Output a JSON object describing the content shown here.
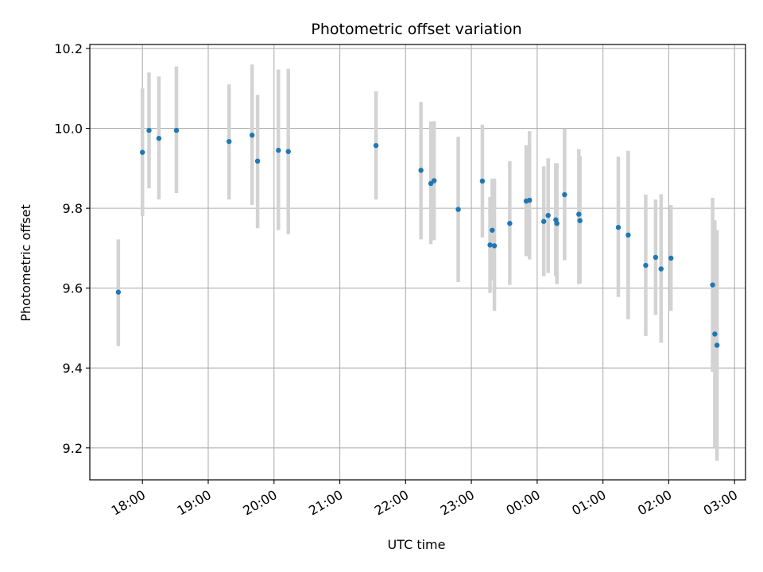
{
  "chart_data": {
    "type": "scatter",
    "title": "Photometric offset variation",
    "xlabel": "UTC time",
    "ylabel": "Photometric offset",
    "x_axis_kind": "time",
    "xlim": [
      "17:12",
      "03:10"
    ],
    "ylim": [
      9.12,
      10.21
    ],
    "x_ticks": [
      "18:00",
      "19:00",
      "20:00",
      "21:00",
      "22:00",
      "23:00",
      "00:00",
      "01:00",
      "02:00",
      "03:00"
    ],
    "y_ticks": [
      9.2,
      9.4,
      9.6,
      9.8,
      10.0,
      10.2
    ],
    "y_tick_labels": [
      "9.2",
      "9.4",
      "9.6",
      "9.8",
      "10.0",
      "10.2"
    ],
    "grid": true,
    "colors": {
      "point": "#1f77b4",
      "errorbar": "#d3d3d3",
      "grid": "#b0b0b0",
      "axes": "#000000"
    },
    "points": [
      {
        "x": "17:38",
        "y": 9.59,
        "yerr_low": 9.455,
        "yerr_high": 9.722
      },
      {
        "x": "18:00",
        "y": 9.94,
        "yerr_low": 9.78,
        "yerr_high": 10.1
      },
      {
        "x": "18:06",
        "y": 9.995,
        "yerr_low": 9.85,
        "yerr_high": 10.14
      },
      {
        "x": "18:15",
        "y": 9.975,
        "yerr_low": 9.822,
        "yerr_high": 10.13
      },
      {
        "x": "18:31",
        "y": 9.995,
        "yerr_low": 9.838,
        "yerr_high": 10.155
      },
      {
        "x": "19:19",
        "y": 9.967,
        "yerr_low": 9.822,
        "yerr_high": 10.11
      },
      {
        "x": "19:40",
        "y": 9.983,
        "yerr_low": 9.808,
        "yerr_high": 10.16
      },
      {
        "x": "19:45",
        "y": 9.918,
        "yerr_low": 9.75,
        "yerr_high": 10.084
      },
      {
        "x": "20:04",
        "y": 9.945,
        "yerr_low": 9.745,
        "yerr_high": 10.147
      },
      {
        "x": "20:13",
        "y": 9.942,
        "yerr_low": 9.735,
        "yerr_high": 10.149
      },
      {
        "x": "21:33",
        "y": 9.957,
        "yerr_low": 9.822,
        "yerr_high": 10.093
      },
      {
        "x": "22:14",
        "y": 9.895,
        "yerr_low": 9.722,
        "yerr_high": 10.066
      },
      {
        "x": "22:23",
        "y": 9.862,
        "yerr_low": 9.71,
        "yerr_high": 10.017
      },
      {
        "x": "22:26",
        "y": 9.869,
        "yerr_low": 9.72,
        "yerr_high": 10.018
      },
      {
        "x": "22:48",
        "y": 9.797,
        "yerr_low": 9.615,
        "yerr_high": 9.979
      },
      {
        "x": "23:10",
        "y": 9.868,
        "yerr_low": 9.727,
        "yerr_high": 10.009
      },
      {
        "x": "23:17",
        "y": 9.708,
        "yerr_low": 9.588,
        "yerr_high": 9.828
      },
      {
        "x": "23:19",
        "y": 9.745,
        "yerr_low": 9.62,
        "yerr_high": 9.874
      },
      {
        "x": "23:21",
        "y": 9.706,
        "yerr_low": 9.543,
        "yerr_high": 9.874
      },
      {
        "x": "23:35",
        "y": 9.762,
        "yerr_low": 9.608,
        "yerr_high": 9.918
      },
      {
        "x": "23:50",
        "y": 9.818,
        "yerr_low": 9.68,
        "yerr_high": 9.958
      },
      {
        "x": "23:53",
        "y": 9.82,
        "yerr_low": 9.672,
        "yerr_high": 9.993
      },
      {
        "x": "00:06",
        "y": 9.767,
        "yerr_low": 9.63,
        "yerr_high": 9.905
      },
      {
        "x": "00:10",
        "y": 9.782,
        "yerr_low": 9.638,
        "yerr_high": 9.925
      },
      {
        "x": "00:17",
        "y": 9.771,
        "yerr_low": 9.63,
        "yerr_high": 9.913
      },
      {
        "x": "00:18",
        "y": 9.762,
        "yerr_low": 9.61,
        "yerr_high": 9.913
      },
      {
        "x": "00:25",
        "y": 9.834,
        "yerr_low": 9.67,
        "yerr_high": 10.0
      },
      {
        "x": "00:38",
        "y": 9.785,
        "yerr_low": 9.61,
        "yerr_high": 9.948
      },
      {
        "x": "00:39",
        "y": 9.769,
        "yerr_low": 9.612,
        "yerr_high": 9.93
      },
      {
        "x": "01:14",
        "y": 9.752,
        "yerr_low": 9.578,
        "yerr_high": 9.929
      },
      {
        "x": "01:23",
        "y": 9.733,
        "yerr_low": 9.522,
        "yerr_high": 9.944
      },
      {
        "x": "01:39",
        "y": 9.657,
        "yerr_low": 9.48,
        "yerr_high": 9.834
      },
      {
        "x": "01:48",
        "y": 9.677,
        "yerr_low": 9.533,
        "yerr_high": 9.822
      },
      {
        "x": "01:53",
        "y": 9.648,
        "yerr_low": 9.463,
        "yerr_high": 9.835
      },
      {
        "x": "02:02",
        "y": 9.675,
        "yerr_low": 9.543,
        "yerr_high": 9.808
      },
      {
        "x": "02:40",
        "y": 9.608,
        "yerr_low": 9.39,
        "yerr_high": 9.826
      },
      {
        "x": "02:42",
        "y": 9.485,
        "yerr_low": 9.2,
        "yerr_high": 9.77
      },
      {
        "x": "02:44",
        "y": 9.457,
        "yerr_low": 9.168,
        "yerr_high": 9.745
      }
    ]
  }
}
